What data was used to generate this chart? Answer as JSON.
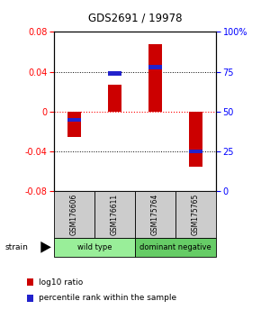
{
  "title": "GDS2691 / 19978",
  "samples": [
    "GSM176606",
    "GSM176611",
    "GSM175764",
    "GSM175765"
  ],
  "log10_ratio": [
    -0.025,
    0.027,
    0.068,
    -0.055
  ],
  "percentile_rank": [
    0.45,
    0.74,
    0.78,
    0.25
  ],
  "ylim": [
    -0.08,
    0.08
  ],
  "yticks_left": [
    -0.08,
    -0.04,
    0,
    0.04,
    0.08
  ],
  "yticks_right": [
    0,
    25,
    50,
    75,
    100
  ],
  "bar_color_red": "#CC0000",
  "bar_color_blue": "#2222CC",
  "bar_width": 0.35,
  "blue_bar_height": 0.004,
  "blue_bar_width": 0.35,
  "legend_red_label": "log10 ratio",
  "legend_blue_label": "percentile rank within the sample",
  "strain_label": "strain",
  "group_label_bg_wt": "#99EE99",
  "group_label_bg_dn": "#66CC66",
  "sample_bg": "#CCCCCC",
  "group_defs": [
    [
      0,
      1,
      "wild type"
    ],
    [
      2,
      3,
      "dominant negative"
    ]
  ]
}
